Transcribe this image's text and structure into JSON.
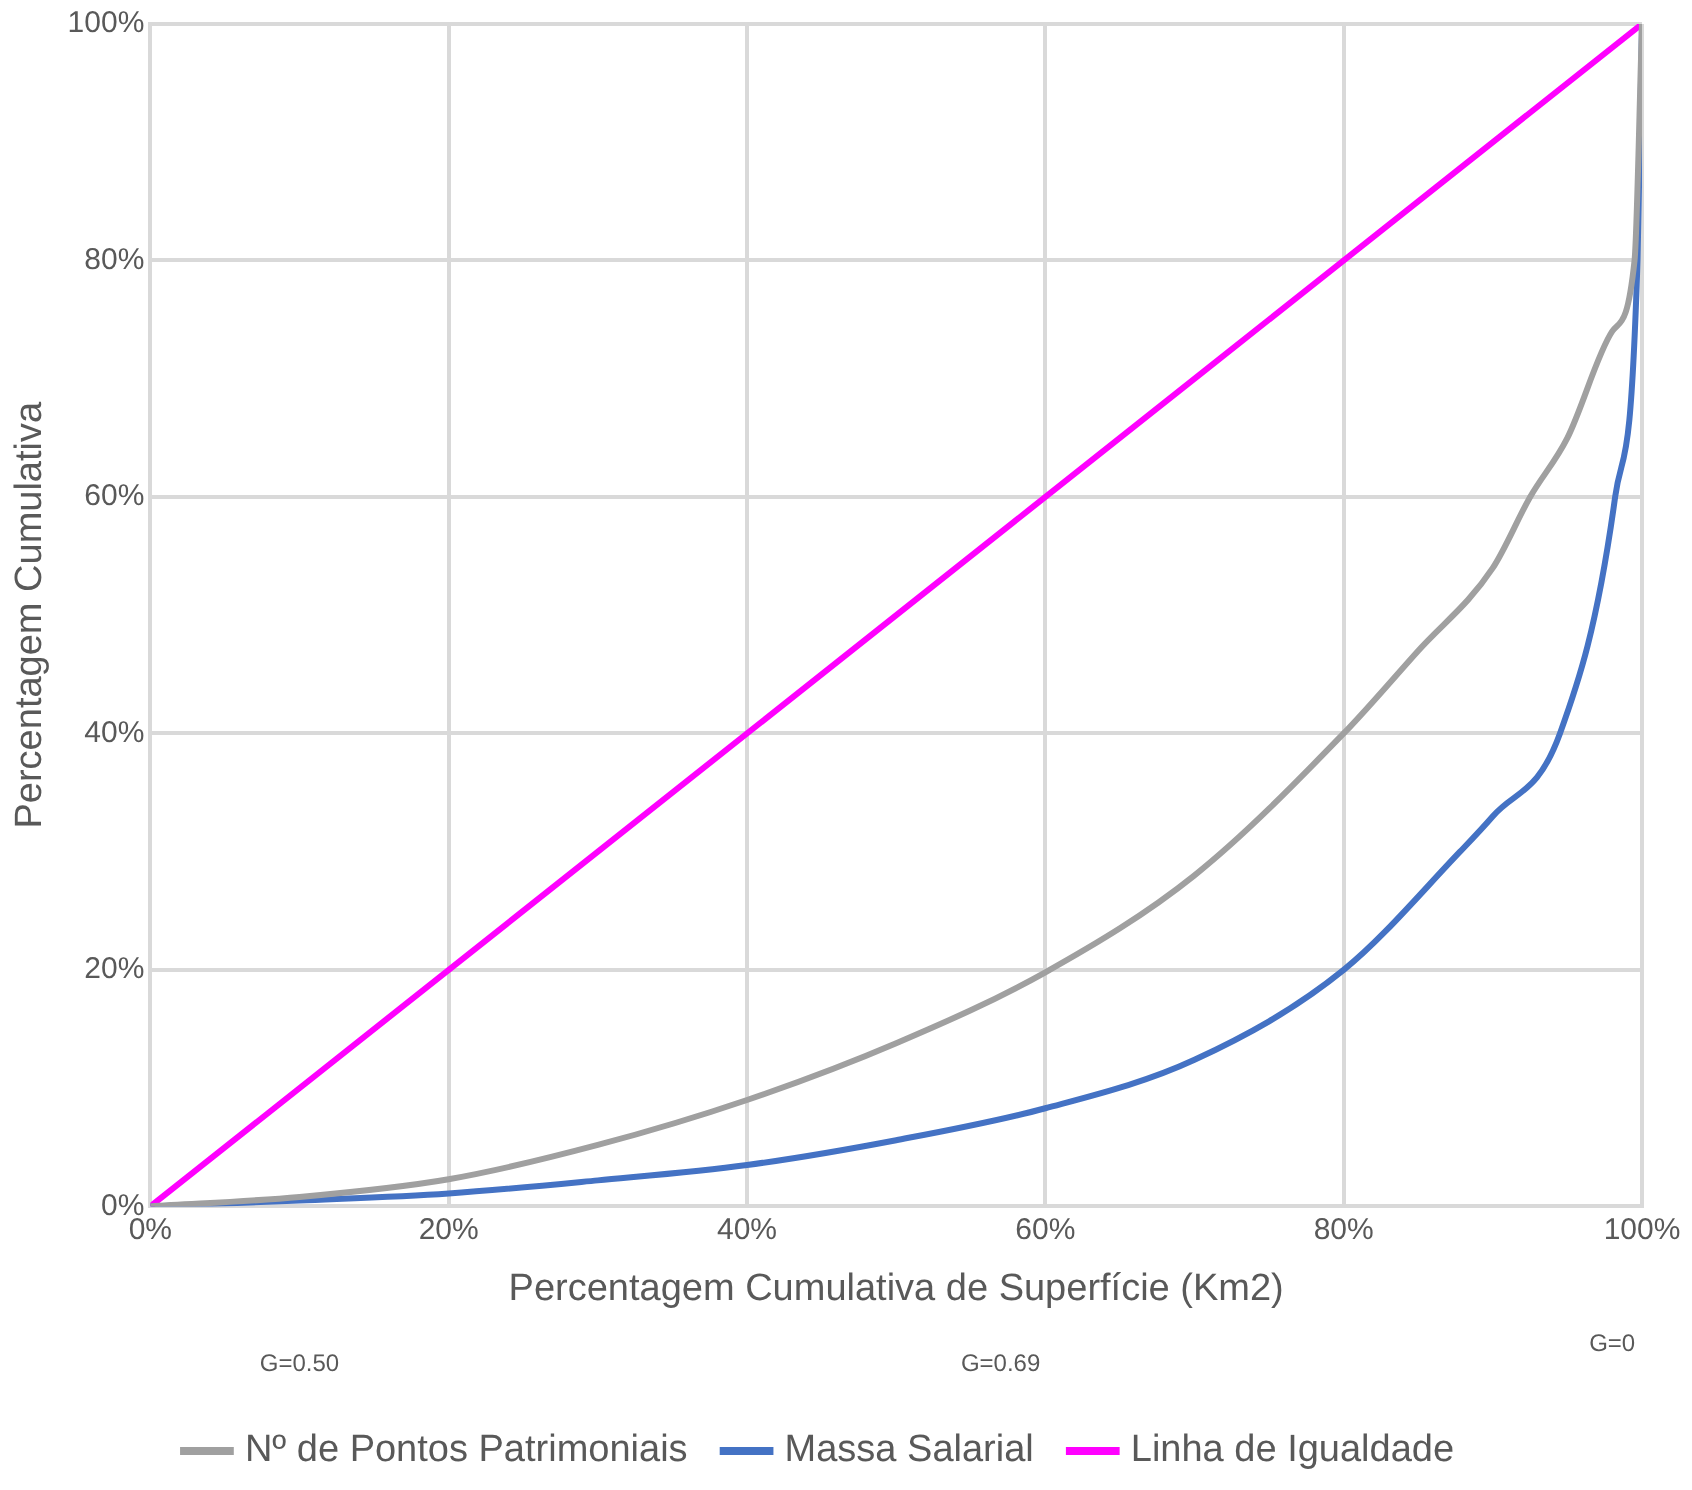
{
  "chart_data": {
    "type": "line",
    "xlabel": "Percentagem Cumulativa de Superfície (Km2)",
    "ylabel": "Percentagem Cumulativa",
    "xlim": [
      0,
      100
    ],
    "ylim": [
      0,
      100
    ],
    "xticks": [
      {
        "value": 0,
        "label": "0%"
      },
      {
        "value": 20,
        "label": "20%"
      },
      {
        "value": 40,
        "label": "40%"
      },
      {
        "value": 60,
        "label": "60%"
      },
      {
        "value": 80,
        "label": "80%"
      },
      {
        "value": 100,
        "label": "100%"
      }
    ],
    "yticks": [
      {
        "value": 0,
        "label": "0%"
      },
      {
        "value": 20,
        "label": "20%"
      },
      {
        "value": 40,
        "label": "40%"
      },
      {
        "value": 60,
        "label": "60%"
      },
      {
        "value": 80,
        "label": "80%"
      },
      {
        "value": 100,
        "label": "100%"
      }
    ],
    "series": [
      {
        "name": "Nº de Pontos Patrimoniais",
        "color": "#a0a0a0",
        "x": [
          0,
          10,
          20,
          30,
          40,
          50,
          60,
          70,
          80,
          85,
          90,
          92.5,
          95,
          98,
          99.5,
          100
        ],
        "values": [
          0,
          0.8,
          2.3,
          5.2,
          9,
          13.8,
          19.8,
          28,
          40,
          47,
          54,
          60,
          65,
          74,
          80,
          100
        ]
      },
      {
        "name": "Massa Salarial",
        "color": "#4472c4",
        "x": [
          0,
          10,
          20,
          30,
          40,
          50,
          60,
          70,
          80,
          87.8,
          90,
          94.5,
          98.2,
          99.7,
          100
        ],
        "values": [
          0,
          0.5,
          1.1,
          2.2,
          3.5,
          5.6,
          8.3,
          12.4,
          20,
          30,
          33,
          40,
          60,
          80,
          100
        ]
      },
      {
        "name": "Linha de Igualdade",
        "color": "#ff00ff",
        "x": [
          0,
          100
        ],
        "values": [
          0,
          100
        ]
      }
    ],
    "grid": true,
    "legend": "bottom",
    "marker": "none",
    "line_style": "solid",
    "annotations": [
      "G=0.50",
      "G=0.69",
      "G=0"
    ]
  }
}
